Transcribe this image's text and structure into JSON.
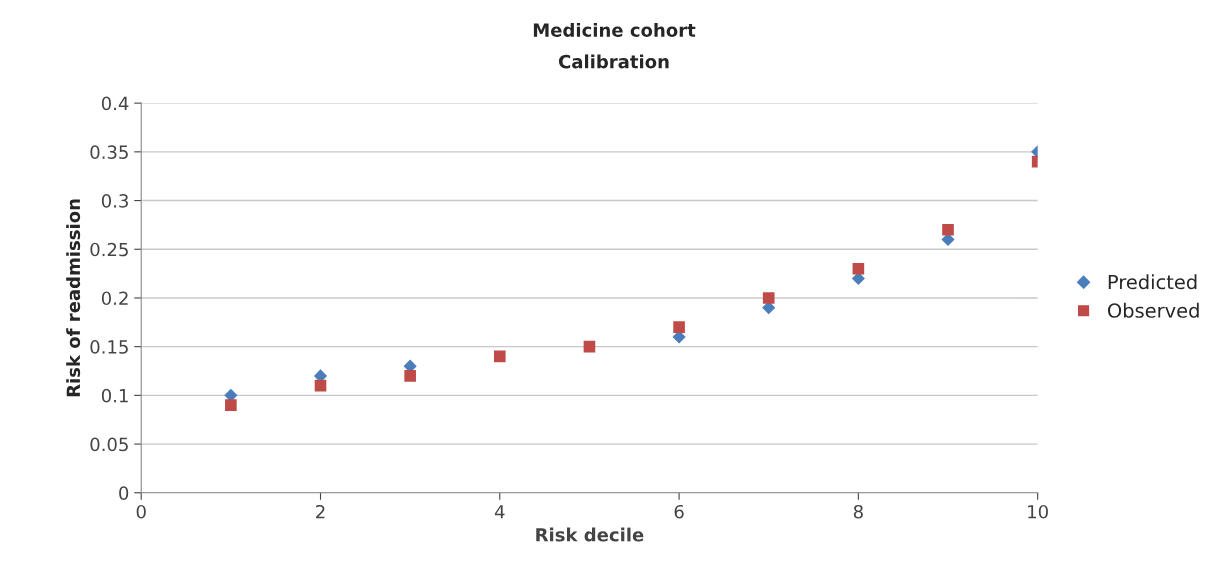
{
  "chart_data": {
    "type": "scatter",
    "title": "Medicine cohort",
    "subtitle": "Calibration",
    "xlabel": "Risk decile",
    "ylabel": "Risk of readmission",
    "x": [
      1,
      2,
      3,
      4,
      5,
      6,
      7,
      8,
      9,
      10
    ],
    "series": [
      {
        "name": "Predicted",
        "color": "#4a7ebb",
        "marker": "diamond",
        "values": [
          0.1,
          0.12,
          0.13,
          null,
          null,
          0.16,
          0.19,
          0.22,
          0.26,
          0.35
        ]
      },
      {
        "name": "Observed",
        "color": "#be4b48",
        "marker": "square",
        "values": [
          0.09,
          0.11,
          0.12,
          0.14,
          0.15,
          0.17,
          0.2,
          0.23,
          0.27,
          0.34
        ]
      }
    ],
    "xlim": [
      0,
      10
    ],
    "xticks": [
      0,
      2,
      4,
      6,
      8,
      10
    ],
    "ylim": [
      0,
      0.4
    ],
    "yticks": [
      0,
      0.05,
      0.1,
      0.15,
      0.2,
      0.25,
      0.3,
      0.35,
      0.4
    ],
    "grid": "y",
    "legend": "right"
  }
}
